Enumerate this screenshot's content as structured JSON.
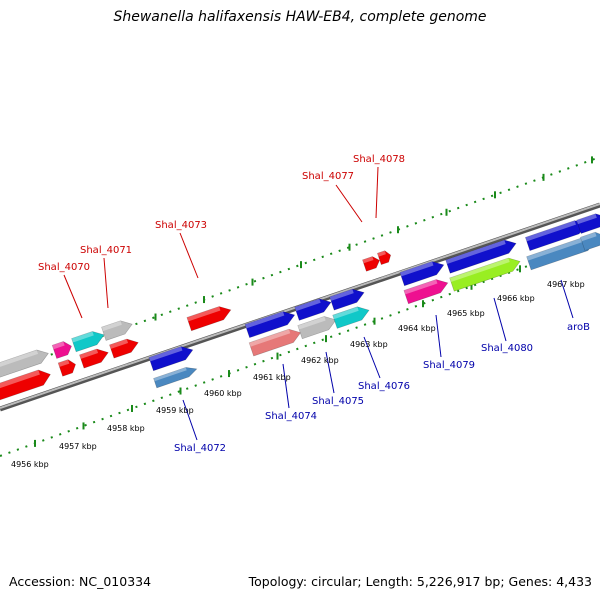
{
  "title": "Shewanella halifaxensis HAW-EB4, complete genome",
  "footer": {
    "accession": "Accession: NC_010334",
    "topology": "Topology: circular; Length: 5,226,917 bp; Genes: 4,433"
  },
  "colors": {
    "label_top": "#cc0000",
    "label_bottom": "#0000aa",
    "backbone": "#888888",
    "tick": "#1a8a1a",
    "red": "#ee0000",
    "blue": "#1010cc",
    "cyan": "#10c8c8",
    "magenta": "#ee1090",
    "grey": "#bbbbbb",
    "pink": "#e67878",
    "lime": "#99ee22",
    "steel": "#4a88c0"
  },
  "kbp_labels": [
    "4956 kbp",
    "4957 kbp",
    "4958 kbp",
    "4959 kbp",
    "4960 kbp",
    "4961 kbp",
    "4962 kbp",
    "4963 kbp",
    "4964 kbp",
    "4965 kbp",
    "4966 kbp",
    "4967 kbp"
  ],
  "top_genes": [
    "Shal_4070",
    "Shal_4071",
    "Shal_4073",
    "Shal_4077",
    "Shal_4078"
  ],
  "bottom_genes": [
    "Shal_4072",
    "Shal_4074",
    "Shal_4075",
    "Shal_4076",
    "Shal_4079",
    "Shal_4080",
    "aroB"
  ]
}
